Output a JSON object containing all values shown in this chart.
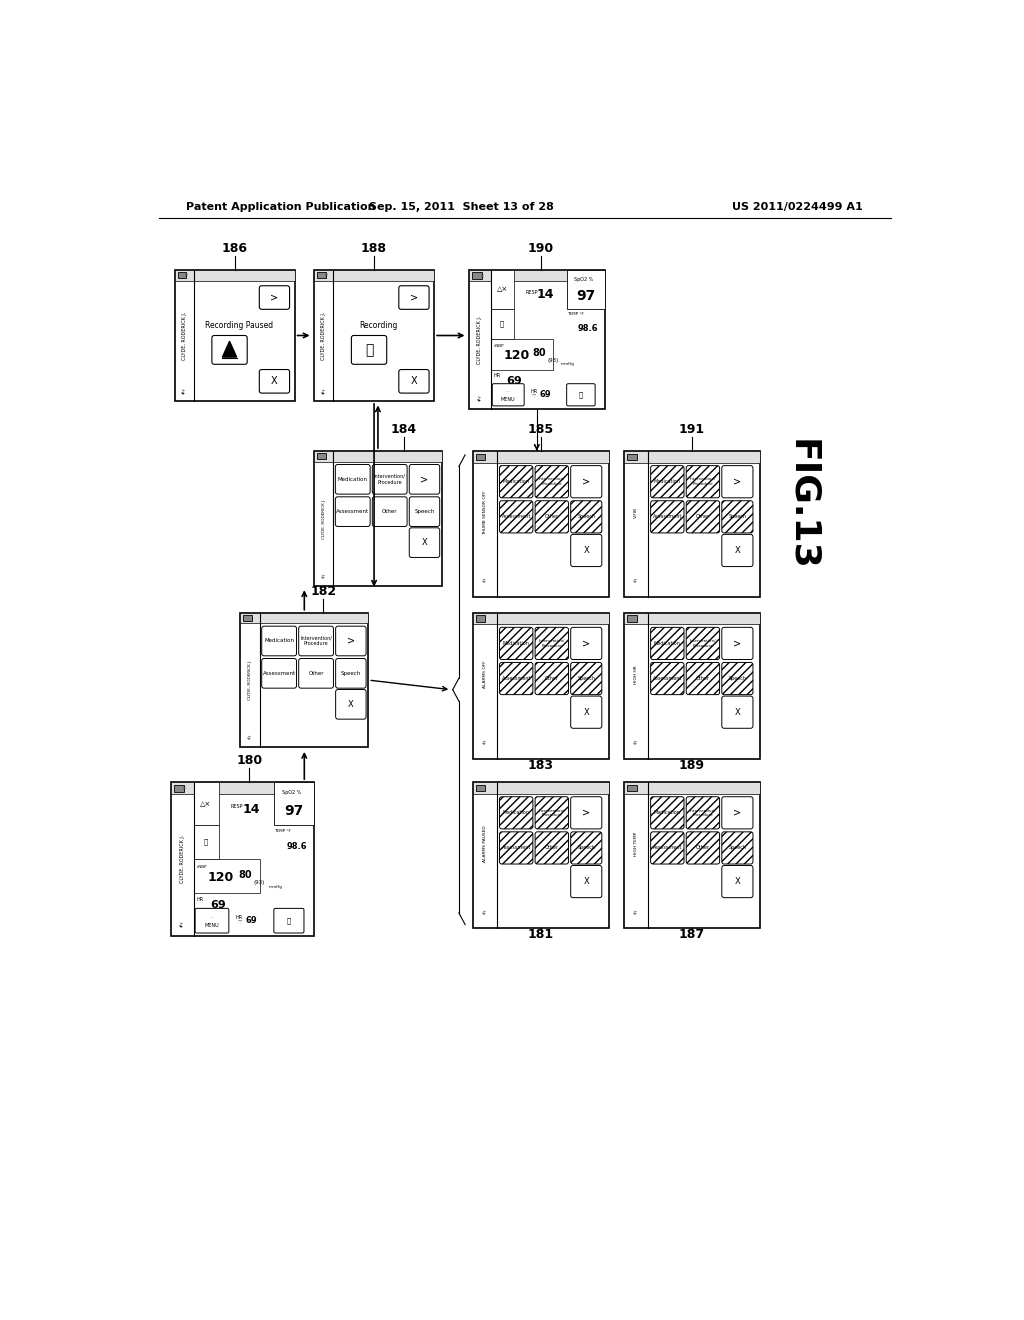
{
  "header_left": "Patent Application Publication",
  "header_mid": "Sep. 15, 2011  Sheet 13 of 28",
  "header_right": "US 2011/0224499 A1",
  "fig_label": "FIG.13",
  "bg_color": "#ffffff"
}
